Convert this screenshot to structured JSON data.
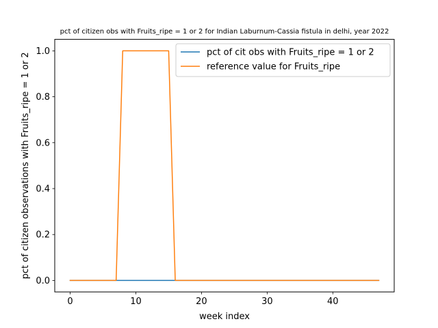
{
  "chart_data": {
    "type": "line",
    "title": "pct of citizen obs with Fruits_ripe = 1 or 2 for Indian Laburnum-Cassia fistula in delhi, year 2022",
    "xlabel": "week index",
    "ylabel": "pct of citizen observations with Fruits_ripe = 1 or 2",
    "xlim": [
      -2.35,
      49.35
    ],
    "ylim": [
      -0.05,
      1.05
    ],
    "xticks": [
      0,
      10,
      20,
      30,
      40
    ],
    "yticks": [
      0.0,
      0.2,
      0.4,
      0.6,
      0.8,
      1.0
    ],
    "ytick_labels": [
      "0.0",
      "0.2",
      "0.4",
      "0.6",
      "0.8",
      "1.0"
    ],
    "grid": false,
    "legend_position": "top-right",
    "series": [
      {
        "name": "pct of cit obs with Fruits_ripe = 1 or 2",
        "color": "#1f77b4",
        "x": [
          0,
          1,
          2,
          3,
          4,
          5,
          6,
          7,
          8,
          9,
          10,
          11,
          12,
          13,
          14,
          15,
          16,
          17,
          18,
          19,
          20,
          21,
          22,
          23,
          24,
          25,
          26,
          27,
          28,
          29,
          30,
          31,
          32,
          33,
          34,
          35,
          36,
          37,
          38,
          39,
          40,
          41,
          42,
          43,
          44,
          45,
          46,
          47
        ],
        "y": [
          0,
          0,
          0,
          0,
          0,
          0,
          0,
          0,
          0,
          0,
          0,
          0,
          0,
          0,
          0,
          0,
          0,
          0,
          0,
          0,
          0,
          0,
          0,
          0,
          0,
          0,
          0,
          0,
          0,
          0,
          0,
          0,
          0,
          0,
          0,
          0,
          0,
          0,
          0,
          0,
          0,
          0,
          0,
          0,
          0,
          0,
          0,
          0
        ]
      },
      {
        "name": "reference value for Fruits_ripe",
        "color": "#ff7f0e",
        "x": [
          0,
          1,
          2,
          3,
          4,
          5,
          6,
          7,
          8,
          9,
          10,
          11,
          12,
          13,
          14,
          15,
          16,
          17,
          18,
          19,
          20,
          21,
          22,
          23,
          24,
          25,
          26,
          27,
          28,
          29,
          30,
          31,
          32,
          33,
          34,
          35,
          36,
          37,
          38,
          39,
          40,
          41,
          42,
          43,
          44,
          45,
          46,
          47
        ],
        "y": [
          0,
          0,
          0,
          0,
          0,
          0,
          0,
          0,
          1,
          1,
          1,
          1,
          1,
          1,
          1,
          1,
          0,
          0,
          0,
          0,
          0,
          0,
          0,
          0,
          0,
          0,
          0,
          0,
          0,
          0,
          0,
          0,
          0,
          0,
          0,
          0,
          0,
          0,
          0,
          0,
          0,
          0,
          0,
          0,
          0,
          0,
          0,
          0
        ]
      }
    ]
  }
}
